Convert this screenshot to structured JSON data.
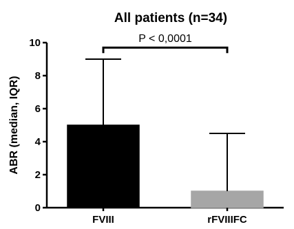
{
  "chart_data": {
    "type": "bar",
    "title": "All patients (n=34)",
    "ylabel": "ABR (median, IQR)",
    "xlabel": "",
    "ylim": [
      0,
      10
    ],
    "yticks": [
      0,
      2,
      4,
      6,
      8,
      10
    ],
    "categories": [
      "FVIII",
      "rFVIIIFC"
    ],
    "values": [
      5,
      1
    ],
    "upper_error": [
      9,
      4.5
    ],
    "bar_colors": [
      "#000000",
      "#a6a6a6"
    ],
    "annotation": {
      "text": "P < 0,0001",
      "between": [
        "FVIII",
        "rFVIIIFC"
      ],
      "level": 9.7
    },
    "grid": false,
    "legend": "none"
  }
}
